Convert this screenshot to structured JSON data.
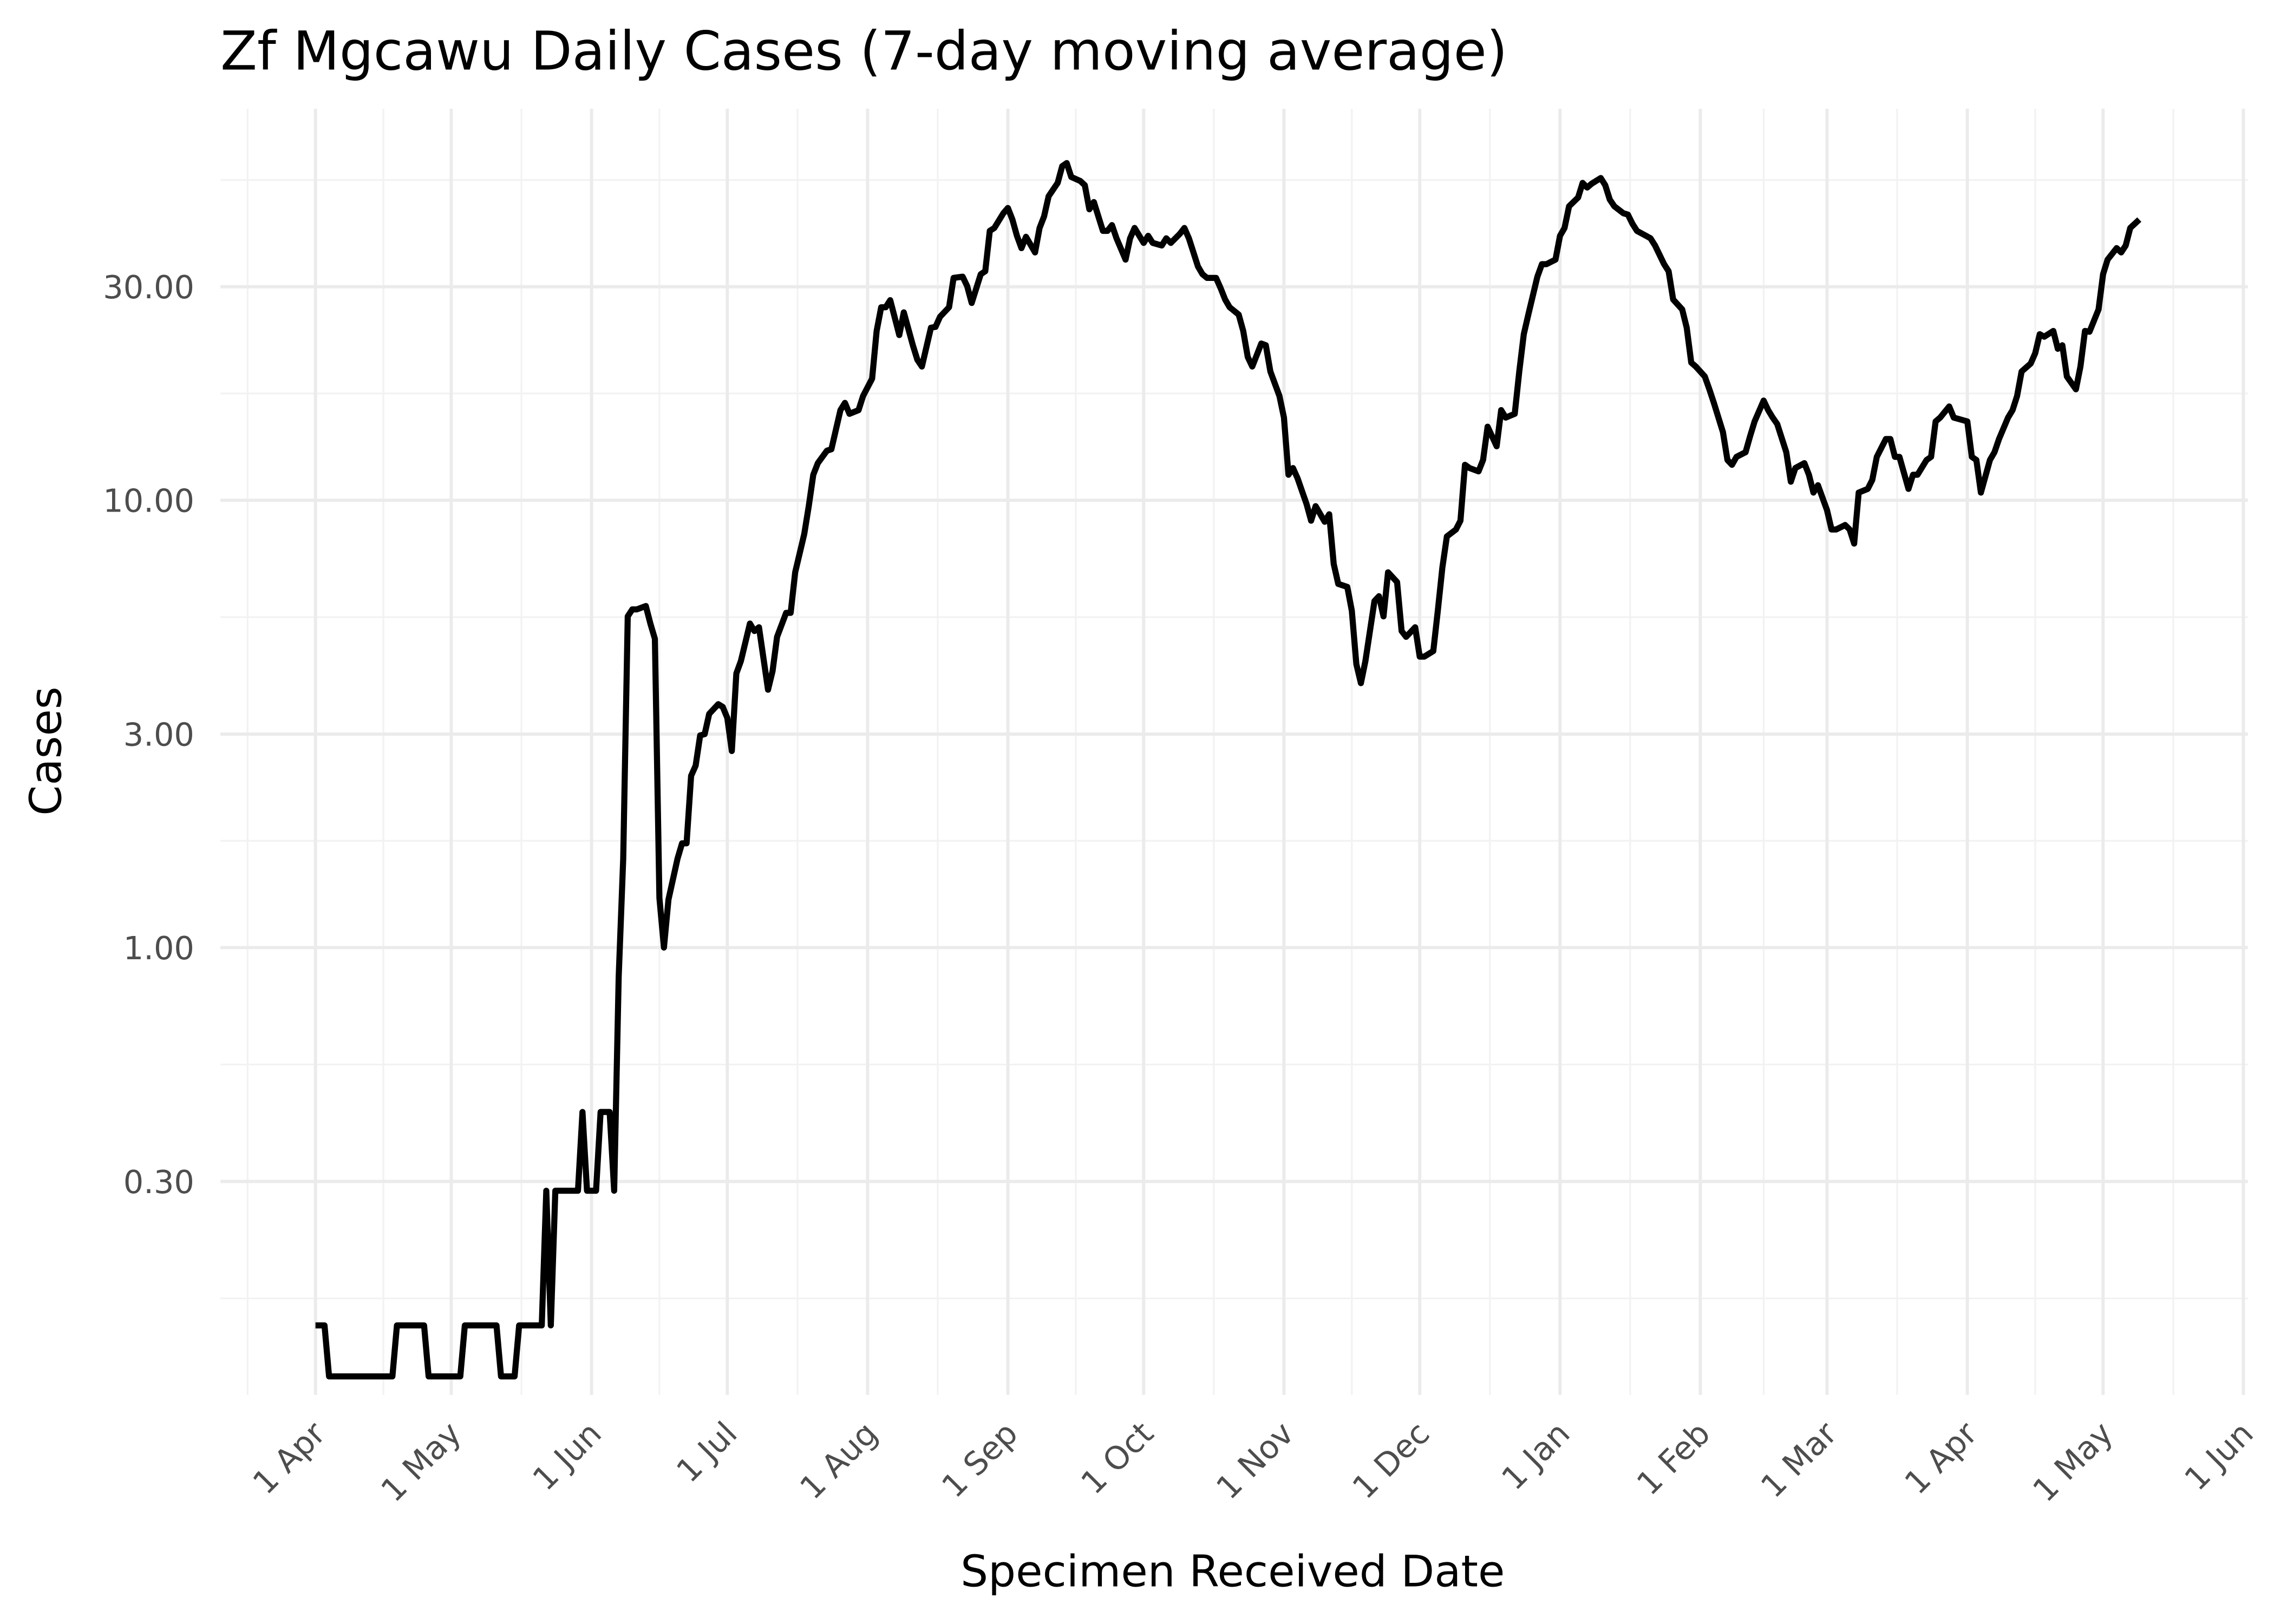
{
  "chart_data": {
    "type": "line",
    "title": "Zf Mgcawu Daily Cases (7-day moving average)",
    "x_label": "Specimen Received Date",
    "y_label": "Cases",
    "log_y": true,
    "grid": true,
    "color": "#000000",
    "xlim": [
      -21,
      427
    ],
    "xticks": [
      {
        "value": 0,
        "label": "1 Apr"
      },
      {
        "value": 30,
        "label": "1 May"
      },
      {
        "value": 61,
        "label": "1 Jun"
      },
      {
        "value": 91,
        "label": "1 Jul"
      },
      {
        "value": 122,
        "label": "1 Aug"
      },
      {
        "value": 153,
        "label": "1 Sep"
      },
      {
        "value": 183,
        "label": "1 Oct"
      },
      {
        "value": 214,
        "label": "1 Nov"
      },
      {
        "value": 244,
        "label": "1 Dec"
      },
      {
        "value": 275,
        "label": "1 Jan"
      },
      {
        "value": 306,
        "label": "1 Feb"
      },
      {
        "value": 334,
        "label": "1 Mar"
      },
      {
        "value": 365,
        "label": "1 Apr"
      },
      {
        "value": 395,
        "label": "1 May"
      },
      {
        "value": 426,
        "label": "1 Jun"
      }
    ],
    "ylim": [
      0.1,
      75
    ],
    "yticks": [
      {
        "value": 0.3,
        "label": "0.30"
      },
      {
        "value": 1,
        "label": "1.00"
      },
      {
        "value": 3,
        "label": "3.00"
      },
      {
        "value": 10,
        "label": "10.00"
      },
      {
        "value": 30,
        "label": "30.00"
      }
    ],
    "x": [
      0,
      2,
      3,
      17,
      18,
      24,
      25,
      32,
      33,
      40,
      41,
      44,
      45,
      50,
      51,
      52,
      53,
      58,
      59,
      60,
      62,
      63,
      65,
      66,
      67,
      68,
      69,
      70,
      71,
      73,
      74,
      75,
      76,
      77,
      78,
      80,
      81,
      82,
      83,
      84,
      85,
      86,
      87,
      89,
      90,
      91,
      92,
      93,
      94,
      96,
      97,
      98,
      100,
      101,
      102,
      104,
      105,
      106,
      108,
      109,
      110,
      111,
      113,
      114,
      116,
      117,
      118,
      120,
      121,
      123,
      124,
      125,
      126,
      127,
      129,
      130,
      132,
      133,
      134,
      136,
      137,
      138,
      140,
      141,
      143,
      144,
      145,
      147,
      148,
      149,
      150,
      152,
      153,
      154,
      155,
      156,
      157,
      159,
      160,
      161,
      162,
      164,
      165,
      166,
      167,
      169,
      170,
      171,
      172,
      174,
      175,
      176,
      177,
      179,
      180,
      181,
      183,
      184,
      185,
      187,
      188,
      189,
      191,
      192,
      193,
      195,
      196,
      197,
      199,
      200,
      201,
      202,
      204,
      205,
      206,
      207,
      209,
      210,
      211,
      213,
      214,
      215,
      216,
      217,
      219,
      220,
      221,
      223,
      224,
      225,
      226,
      228,
      229,
      230,
      231,
      232,
      234,
      235,
      236,
      237,
      239,
      240,
      241,
      243,
      244,
      245,
      247,
      248,
      249,
      250,
      252,
      253,
      254,
      255,
      257,
      258,
      259,
      261,
      262,
      263,
      265,
      266,
      267,
      268,
      270,
      271,
      272,
      274,
      275,
      276,
      277,
      279,
      280,
      281,
      282,
      284,
      285,
      286,
      287,
      289,
      290,
      291,
      292,
      294,
      295,
      296,
      298,
      299,
      300,
      302,
      303,
      304,
      305,
      307,
      308,
      309,
      311,
      312,
      313,
      314,
      316,
      317,
      318,
      320,
      321,
      322,
      323,
      325,
      326,
      327,
      329,
      330,
      331,
      332,
      334,
      335,
      336,
      338,
      339,
      340,
      341,
      343,
      344,
      345,
      347,
      348,
      349,
      350,
      352,
      353,
      354,
      356,
      357,
      358,
      359,
      361,
      362,
      363,
      365,
      366,
      367,
      368,
      370,
      371,
      372,
      374,
      375,
      376,
      377,
      379,
      380,
      381,
      382,
      384,
      385,
      386,
      387,
      389,
      390,
      391,
      392,
      394,
      395,
      396,
      398,
      399,
      400,
      401,
      403
    ],
    "values": [
      0.143,
      0.143,
      0.11,
      0.11,
      0.143,
      0.143,
      0.11,
      0.11,
      0.143,
      0.143,
      0.11,
      0.11,
      0.143,
      0.143,
      0.286,
      0.143,
      0.286,
      0.286,
      0.429,
      0.286,
      0.286,
      0.429,
      0.429,
      0.286,
      0.86,
      1.58,
      5.5,
      5.7,
      5.7,
      5.8,
      5.3,
      4.9,
      1.29,
      1.0,
      1.28,
      1.58,
      1.71,
      1.71,
      2.42,
      2.55,
      2.98,
      3.0,
      3.33,
      3.5,
      3.45,
      3.26,
      2.75,
      4.1,
      4.37,
      5.3,
      5.1,
      5.2,
      3.77,
      4.15,
      4.95,
      5.6,
      5.6,
      6.9,
      8.4,
      9.7,
      11.4,
      12.1,
      12.9,
      13.0,
      15.9,
      16.5,
      15.6,
      15.9,
      17.1,
      18.7,
      23.9,
      27.0,
      27.0,
      28.0,
      23.4,
      26.3,
      22.2,
      20.6,
      19.9,
      24.3,
      24.4,
      25.7,
      27.0,
      31.4,
      31.6,
      30.1,
      27.6,
      32.0,
      32.5,
      40.0,
      40.6,
      43.8,
      45.0,
      42.4,
      39.0,
      36.6,
      38.8,
      35.8,
      40.6,
      43.1,
      47.8,
      51.2,
      55.8,
      56.7,
      52.8,
      51.7,
      50.6,
      44.7,
      46.4,
      40.0,
      40.0,
      41.2,
      38.5,
      34.5,
      38.5,
      40.6,
      37.6,
      39.0,
      37.6,
      37.1,
      38.5,
      37.6,
      39.4,
      40.6,
      38.5,
      33.3,
      32.0,
      31.4,
      31.4,
      29.8,
      28.1,
      27.0,
      26.0,
      23.9,
      20.9,
      19.9,
      22.4,
      22.2,
      19.4,
      17.1,
      15.3,
      11.4,
      11.8,
      11.2,
      9.8,
      9.0,
      9.7,
      8.95,
      9.3,
      7.2,
      6.5,
      6.4,
      5.66,
      4.3,
      3.9,
      4.37,
      5.95,
      6.1,
      5.5,
      6.9,
      6.56,
      5.1,
      4.95,
      5.2,
      4.47,
      4.47,
      4.6,
      5.66,
      7.06,
      8.3,
      8.6,
      9.0,
      12.0,
      11.8,
      11.6,
      12.3,
      14.6,
      13.2,
      15.9,
      15.3,
      15.6,
      19.4,
      23.5,
      26.0,
      31.6,
      33.7,
      33.7,
      34.5,
      39.0,
      40.6,
      45.4,
      47.5,
      51.2,
      50.0,
      51.0,
      52.5,
      50.6,
      47.0,
      45.4,
      43.8,
      43.5,
      41.5,
      40.0,
      39.0,
      38.5,
      37.1,
      33.7,
      32.5,
      28.1,
      26.7,
      24.3,
      20.3,
      19.9,
      18.9,
      17.7,
      16.5,
      14.2,
      12.3,
      12.0,
      12.5,
      12.8,
      13.9,
      15.0,
      16.7,
      15.9,
      15.3,
      14.8,
      12.8,
      11.0,
      11.8,
      12.1,
      11.4,
      10.4,
      10.8,
      9.5,
      8.6,
      8.6,
      8.8,
      8.6,
      8.0,
      10.4,
      10.6,
      11.1,
      12.5,
      13.7,
      13.7,
      12.5,
      12.5,
      10.6,
      11.4,
      11.4,
      12.3,
      12.5,
      15.0,
      15.3,
      16.2,
      15.3,
      15.2,
      15.0,
      12.5,
      12.3,
      10.4,
      12.3,
      12.8,
      13.7,
      15.3,
      15.9,
      17.1,
      19.4,
      20.2,
      21.3,
      23.5,
      23.2,
      23.9,
      21.8,
      22.2,
      18.9,
      17.7,
      19.9,
      23.9,
      23.8,
      26.7,
      32.0,
      34.5,
      36.6,
      35.8,
      37.1,
      40.6,
      42.4
    ]
  }
}
